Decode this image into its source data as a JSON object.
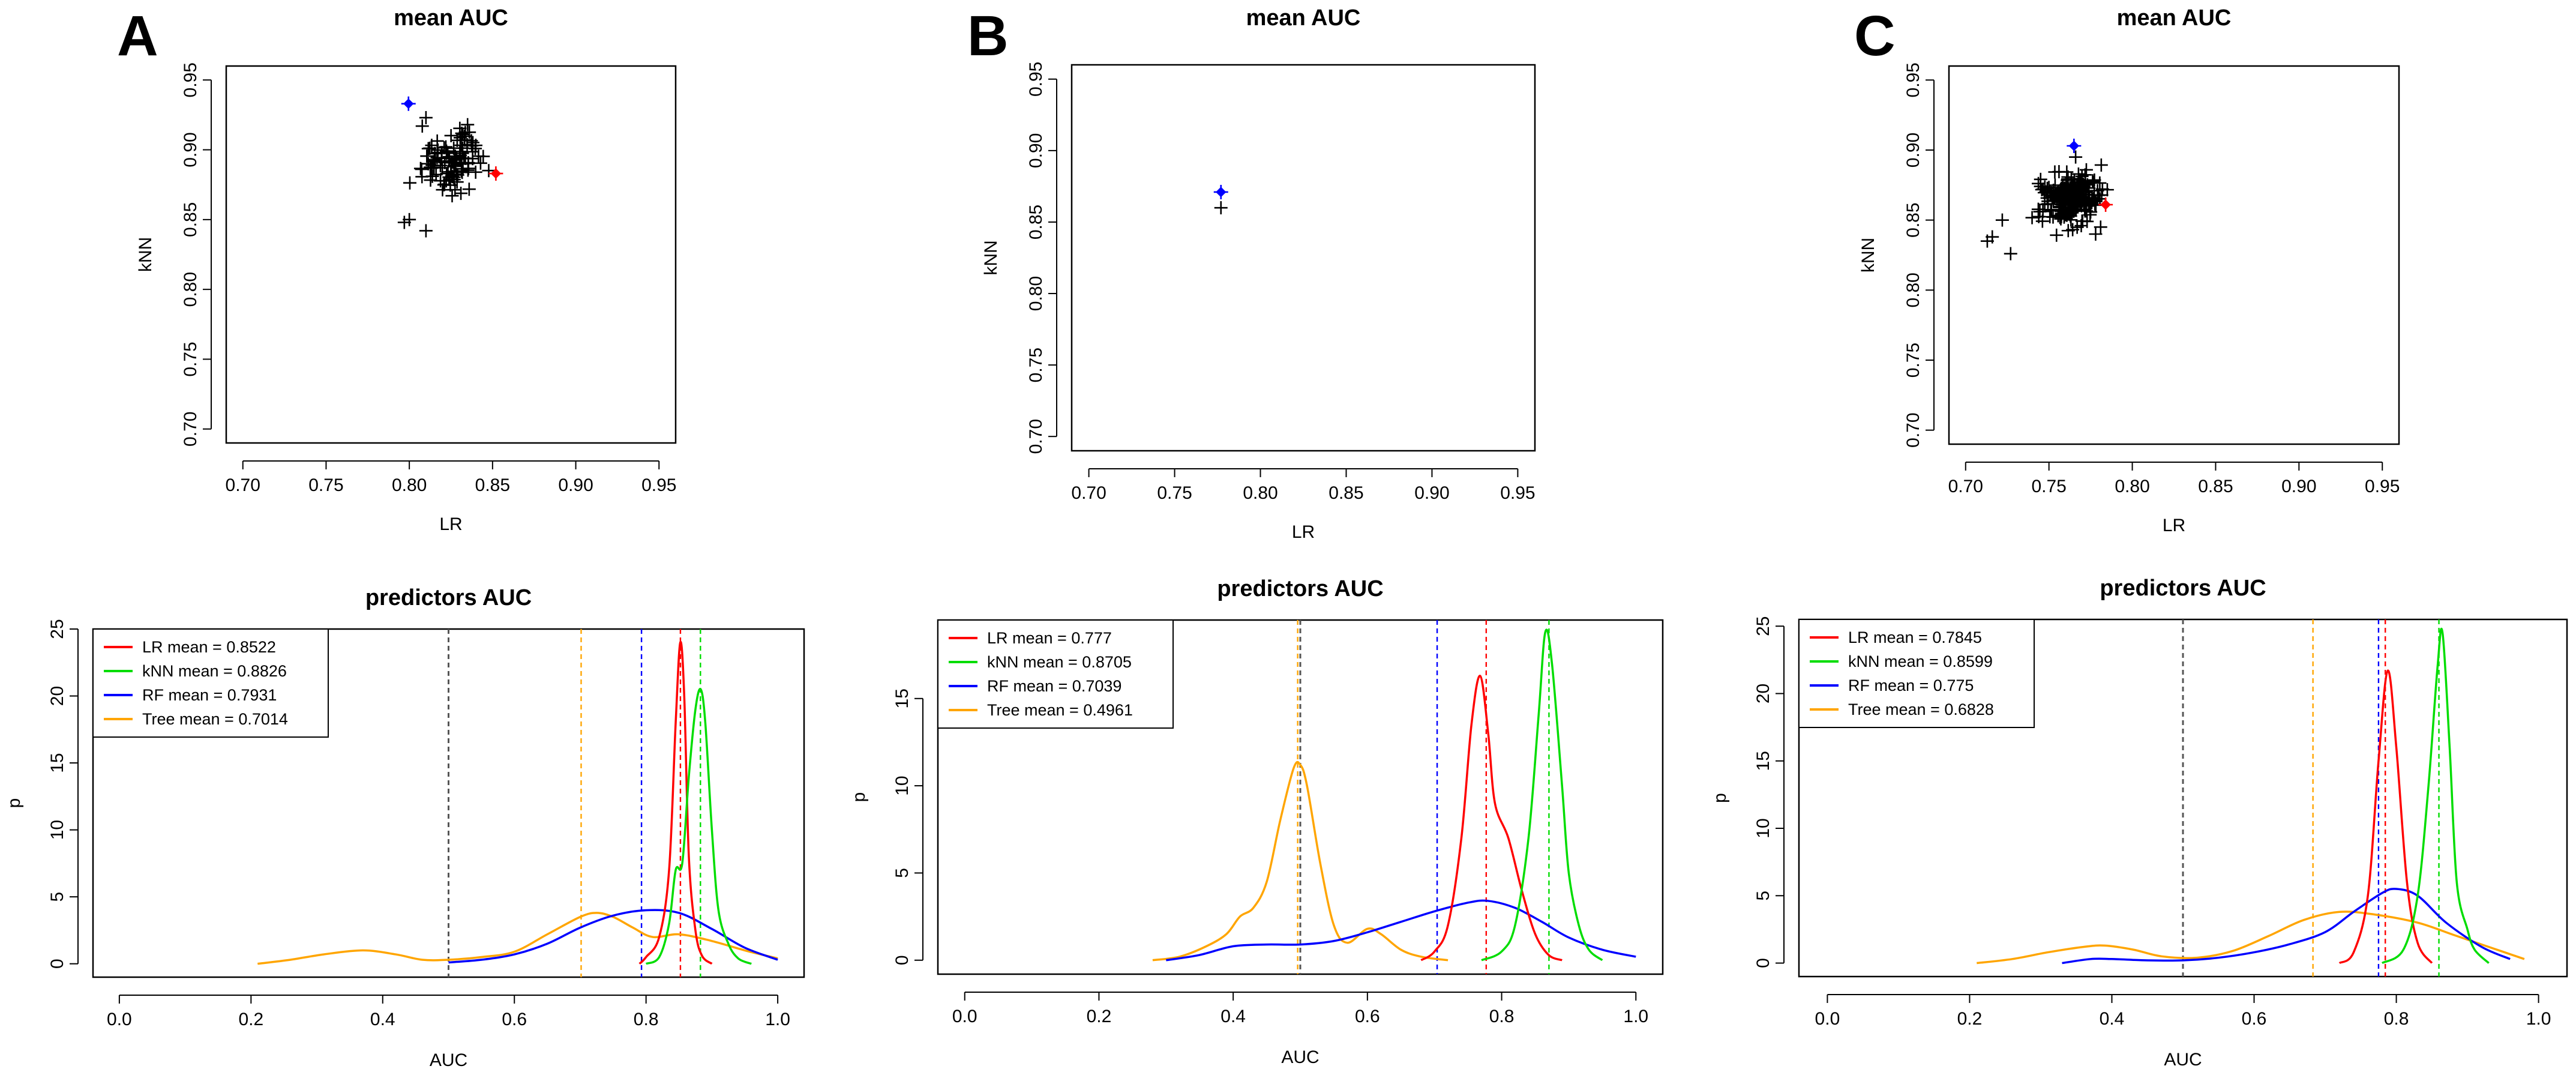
{
  "panels": [
    "A",
    "B",
    "C"
  ],
  "colors": {
    "LR": "#ff0000",
    "kNN": "#00dd00",
    "RF": "#0000ff",
    "Tree": "#ffa500",
    "points": "#000000",
    "baseline": "#555555"
  },
  "chart_data": [
    {
      "panel": "A",
      "type": "scatter",
      "title": "mean AUC",
      "xlabel": "LR",
      "ylabel": "kNN",
      "xlim": [
        0.69,
        0.96
      ],
      "ylim": [
        0.69,
        0.96
      ],
      "xticks": [
        "0.70",
        "0.75",
        "0.80",
        "0.85",
        "0.90",
        "0.95"
      ],
      "yticks": [
        "0.70",
        "0.75",
        "0.80",
        "0.85",
        "0.90",
        "0.95"
      ],
      "cluster": {
        "cx": 0.825,
        "cy": 0.892,
        "sx": 0.013,
        "sy": 0.016,
        "n": 110,
        "xmin": 0.79,
        "xmax": 0.852,
        "ymin": 0.84,
        "ymax": 0.925
      },
      "points": [
        [
          0.81,
          0.923
        ],
        [
          0.8,
          0.85
        ],
        [
          0.81,
          0.842
        ],
        [
          0.797,
          0.848
        ],
        [
          0.835,
          0.918
        ]
      ],
      "highlights": [
        {
          "x": 0.7995,
          "y": 0.933,
          "color": "blue"
        },
        {
          "x": 0.852,
          "y": 0.883,
          "color": "red"
        }
      ]
    },
    {
      "panel": "B",
      "type": "scatter",
      "title": "mean AUC",
      "xlabel": "LR",
      "ylabel": "kNN",
      "xlim": [
        0.69,
        0.96
      ],
      "ylim": [
        0.69,
        0.96
      ],
      "xticks": [
        "0.70",
        "0.75",
        "0.80",
        "0.85",
        "0.90",
        "0.95"
      ],
      "yticks": [
        "0.70",
        "0.75",
        "0.80",
        "0.85",
        "0.90",
        "0.95"
      ],
      "cluster": null,
      "points": [
        [
          0.777,
          0.86
        ]
      ],
      "highlights": [
        {
          "x": 0.777,
          "y": 0.871,
          "color": "blue"
        }
      ]
    },
    {
      "panel": "C",
      "type": "scatter",
      "title": "mean AUC",
      "xlabel": "LR",
      "ylabel": "kNN",
      "xlim": [
        0.69,
        0.96
      ],
      "ylim": [
        0.69,
        0.96
      ],
      "xticks": [
        "0.70",
        "0.75",
        "0.80",
        "0.85",
        "0.90",
        "0.95"
      ],
      "yticks": [
        "0.70",
        "0.75",
        "0.80",
        "0.85",
        "0.90",
        "0.95"
      ],
      "cluster": {
        "cx": 0.763,
        "cy": 0.866,
        "sx": 0.012,
        "sy": 0.012,
        "n": 260,
        "xmin": 0.725,
        "xmax": 0.785,
        "ymin": 0.825,
        "ymax": 0.9
      },
      "points": [
        [
          0.713,
          0.835
        ],
        [
          0.716,
          0.838
        ],
        [
          0.722,
          0.85
        ],
        [
          0.781,
          0.845
        ],
        [
          0.778,
          0.84
        ],
        [
          0.766,
          0.895
        ],
        [
          0.727,
          0.826
        ]
      ],
      "highlights": [
        {
          "x": 0.765,
          "y": 0.903,
          "color": "blue"
        },
        {
          "x": 0.784,
          "y": 0.861,
          "color": "red"
        }
      ]
    },
    {
      "panel": "A",
      "type": "line",
      "title": "predictors AUC",
      "xlabel": "AUC",
      "ylabel": "p",
      "xlim": [
        -0.04,
        1.04
      ],
      "ylim": [
        -1.0,
        25.0
      ],
      "xticks": [
        "0.0",
        "0.2",
        "0.4",
        "0.6",
        "0.8",
        "1.0"
      ],
      "yticks": [
        "0",
        "5",
        "10",
        "15",
        "20",
        "25"
      ],
      "baseline": 0.5,
      "series": [
        {
          "name": "LR",
          "mean": 0.8522,
          "label": "LR mean = 0.8522",
          "points": [
            [
              0.79,
              0
            ],
            [
              0.8,
              0.5
            ],
            [
              0.82,
              2
            ],
            [
              0.835,
              7
            ],
            [
              0.845,
              18
            ],
            [
              0.852,
              24
            ],
            [
              0.858,
              20
            ],
            [
              0.865,
              8
            ],
            [
              0.875,
              2.5
            ],
            [
              0.885,
              0.6
            ],
            [
              0.9,
              0
            ]
          ]
        },
        {
          "name": "kNN",
          "mean": 0.8826,
          "label": "kNN mean = 0.8826",
          "points": [
            [
              0.8,
              0
            ],
            [
              0.82,
              0.5
            ],
            [
              0.835,
              3
            ],
            [
              0.845,
              7
            ],
            [
              0.855,
              7.5
            ],
            [
              0.865,
              14
            ],
            [
              0.875,
              19
            ],
            [
              0.883,
              20.5
            ],
            [
              0.89,
              18
            ],
            [
              0.9,
              10
            ],
            [
              0.91,
              4
            ],
            [
              0.925,
              1.5
            ],
            [
              0.94,
              0.4
            ],
            [
              0.96,
              0
            ]
          ]
        },
        {
          "name": "RF",
          "mean": 0.7931,
          "label": "RF mean = 0.7931",
          "points": [
            [
              0.5,
              0.1
            ],
            [
              0.55,
              0.3
            ],
            [
              0.6,
              0.7
            ],
            [
              0.65,
              1.5
            ],
            [
              0.7,
              2.7
            ],
            [
              0.75,
              3.6
            ],
            [
              0.8,
              4.0
            ],
            [
              0.85,
              3.8
            ],
            [
              0.9,
              2.6
            ],
            [
              0.95,
              1.2
            ],
            [
              1.0,
              0.3
            ]
          ]
        },
        {
          "name": "Tree",
          "mean": 0.7014,
          "label": "Tree mean = 0.7014",
          "points": [
            [
              0.21,
              0
            ],
            [
              0.26,
              0.3
            ],
            [
              0.31,
              0.7
            ],
            [
              0.37,
              1.0
            ],
            [
              0.42,
              0.7
            ],
            [
              0.46,
              0.3
            ],
            [
              0.5,
              0.3
            ],
            [
              0.55,
              0.5
            ],
            [
              0.6,
              0.9
            ],
            [
              0.65,
              2.2
            ],
            [
              0.7,
              3.5
            ],
            [
              0.725,
              3.8
            ],
            [
              0.75,
              3.5
            ],
            [
              0.78,
              2.7
            ],
            [
              0.81,
              2.0
            ],
            [
              0.85,
              2.2
            ],
            [
              0.9,
              1.7
            ],
            [
              0.95,
              1.0
            ],
            [
              1.0,
              0.4
            ]
          ]
        }
      ],
      "legend": "top-left"
    },
    {
      "panel": "B",
      "type": "line",
      "title": "predictors AUC",
      "xlabel": "AUC",
      "ylabel": "p",
      "xlim": [
        -0.04,
        1.04
      ],
      "ylim": [
        -0.8,
        19.5
      ],
      "xticks": [
        "0.0",
        "0.2",
        "0.4",
        "0.6",
        "0.8",
        "1.0"
      ],
      "yticks": [
        "0",
        "5",
        "10",
        "15"
      ],
      "baseline": 0.5,
      "series": [
        {
          "name": "LR",
          "mean": 0.777,
          "label": "LR mean = 0.777",
          "points": [
            [
              0.68,
              0
            ],
            [
              0.7,
              0.5
            ],
            [
              0.72,
              2
            ],
            [
              0.74,
              7
            ],
            [
              0.755,
              13.5
            ],
            [
              0.768,
              16.3
            ],
            [
              0.78,
              13
            ],
            [
              0.79,
              9
            ],
            [
              0.81,
              7
            ],
            [
              0.83,
              4
            ],
            [
              0.85,
              1.5
            ],
            [
              0.87,
              0.3
            ],
            [
              0.89,
              0
            ]
          ]
        },
        {
          "name": "kNN",
          "mean": 0.8705,
          "label": "kNN mean = 0.8705",
          "points": [
            [
              0.77,
              0
            ],
            [
              0.8,
              0.5
            ],
            [
              0.82,
              2
            ],
            [
              0.84,
              7
            ],
            [
              0.855,
              14
            ],
            [
              0.865,
              18.8
            ],
            [
              0.875,
              17
            ],
            [
              0.89,
              10
            ],
            [
              0.9,
              5
            ],
            [
              0.915,
              2
            ],
            [
              0.93,
              0.6
            ],
            [
              0.95,
              0
            ]
          ]
        },
        {
          "name": "RF",
          "mean": 0.7039,
          "label": "RF mean = 0.7039",
          "points": [
            [
              0.3,
              0
            ],
            [
              0.35,
              0.3
            ],
            [
              0.4,
              0.8
            ],
            [
              0.45,
              0.9
            ],
            [
              0.5,
              0.9
            ],
            [
              0.55,
              1.1
            ],
            [
              0.6,
              1.6
            ],
            [
              0.65,
              2.2
            ],
            [
              0.7,
              2.8
            ],
            [
              0.75,
              3.3
            ],
            [
              0.78,
              3.4
            ],
            [
              0.82,
              3.0
            ],
            [
              0.86,
              2.2
            ],
            [
              0.9,
              1.3
            ],
            [
              0.95,
              0.6
            ],
            [
              1.0,
              0.2
            ]
          ]
        },
        {
          "name": "Tree",
          "mean": 0.4961,
          "label": "Tree mean = 0.4961",
          "points": [
            [
              0.28,
              0
            ],
            [
              0.32,
              0.2
            ],
            [
              0.36,
              0.8
            ],
            [
              0.39,
              1.5
            ],
            [
              0.41,
              2.5
            ],
            [
              0.43,
              3
            ],
            [
              0.45,
              4.5
            ],
            [
              0.47,
              8
            ],
            [
              0.49,
              11
            ],
            [
              0.5,
              11.2
            ],
            [
              0.51,
              10
            ],
            [
              0.53,
              5.5
            ],
            [
              0.55,
              2
            ],
            [
              0.57,
              1.0
            ],
            [
              0.6,
              1.8
            ],
            [
              0.62,
              1.5
            ],
            [
              0.65,
              0.6
            ],
            [
              0.68,
              0.2
            ],
            [
              0.72,
              0
            ]
          ]
        }
      ],
      "legend": "top-left"
    },
    {
      "panel": "C",
      "type": "line",
      "title": "predictors AUC",
      "xlabel": "AUC",
      "ylabel": "p",
      "xlim": [
        -0.04,
        1.04
      ],
      "ylim": [
        -1.0,
        25.5
      ],
      "xticks": [
        "0.0",
        "0.2",
        "0.4",
        "0.6",
        "0.8",
        "1.0"
      ],
      "yticks": [
        "0",
        "5",
        "10",
        "15",
        "20",
        "25"
      ],
      "baseline": 0.5,
      "series": [
        {
          "name": "LR",
          "mean": 0.7845,
          "label": "LR mean = 0.7845",
          "points": [
            [
              0.72,
              0
            ],
            [
              0.74,
              0.8
            ],
            [
              0.76,
              5
            ],
            [
              0.775,
              15
            ],
            [
              0.788,
              21.7
            ],
            [
              0.8,
              16
            ],
            [
              0.815,
              6
            ],
            [
              0.83,
              1.5
            ],
            [
              0.85,
              0
            ]
          ]
        },
        {
          "name": "kNN",
          "mean": 0.8599,
          "label": "kNN mean = 0.8599",
          "points": [
            [
              0.78,
              0
            ],
            [
              0.81,
              1
            ],
            [
              0.83,
              5
            ],
            [
              0.845,
              13
            ],
            [
              0.858,
              22
            ],
            [
              0.865,
              24.5
            ],
            [
              0.875,
              16
            ],
            [
              0.885,
              6
            ],
            [
              0.9,
              2.5
            ],
            [
              0.91,
              1
            ],
            [
              0.93,
              0
            ]
          ]
        },
        {
          "name": "RF",
          "mean": 0.775,
          "label": "RF mean = 0.775",
          "points": [
            [
              0.33,
              0
            ],
            [
              0.37,
              0.3
            ],
            [
              0.4,
              0.3
            ],
            [
              0.45,
              0.2
            ],
            [
              0.5,
              0.2
            ],
            [
              0.55,
              0.4
            ],
            [
              0.6,
              0.8
            ],
            [
              0.65,
              1.4
            ],
            [
              0.7,
              2.3
            ],
            [
              0.74,
              3.8
            ],
            [
              0.78,
              5.2
            ],
            [
              0.8,
              5.5
            ],
            [
              0.83,
              5.0
            ],
            [
              0.87,
              3.0
            ],
            [
              0.92,
              1.2
            ],
            [
              0.96,
              0.3
            ]
          ]
        },
        {
          "name": "Tree",
          "mean": 0.6828,
          "label": "Tree mean = 0.6828",
          "points": [
            [
              0.21,
              0
            ],
            [
              0.26,
              0.3
            ],
            [
              0.31,
              0.8
            ],
            [
              0.36,
              1.2
            ],
            [
              0.39,
              1.3
            ],
            [
              0.43,
              1.0
            ],
            [
              0.47,
              0.5
            ],
            [
              0.52,
              0.4
            ],
            [
              0.57,
              0.9
            ],
            [
              0.62,
              2.0
            ],
            [
              0.67,
              3.2
            ],
            [
              0.72,
              3.8
            ],
            [
              0.77,
              3.6
            ],
            [
              0.83,
              3.0
            ],
            [
              0.88,
              2.1
            ],
            [
              0.93,
              1.2
            ],
            [
              0.98,
              0.3
            ]
          ]
        }
      ],
      "legend": "top-left"
    }
  ]
}
